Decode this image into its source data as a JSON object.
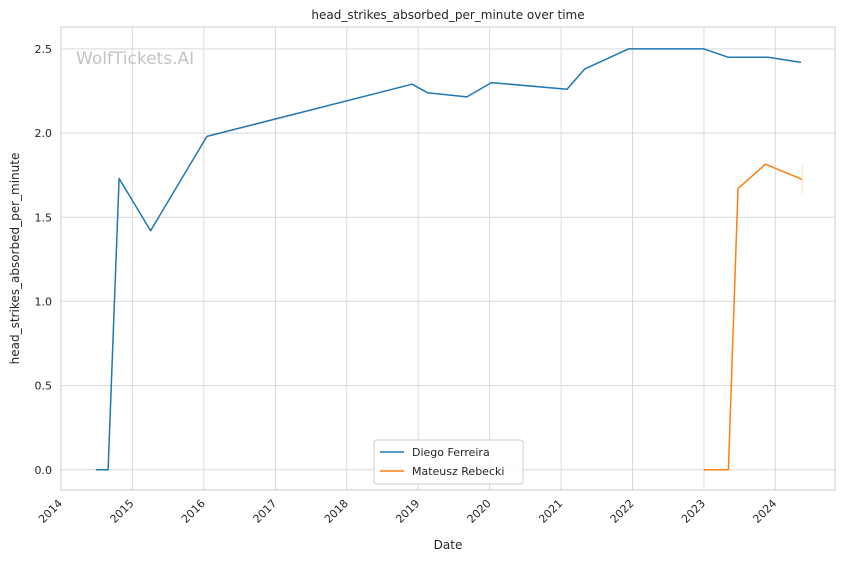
{
  "watermark": "WolfTickets.AI",
  "chart_data": {
    "type": "line",
    "title": "head_strikes_absorbed_per_minute over time",
    "xlabel": "Date",
    "ylabel": "head_strikes_absorbed_per_minute",
    "x_type": "date",
    "xlim": [
      "2014-01-01",
      "2024-11-01"
    ],
    "ylim": [
      -0.12,
      2.63
    ],
    "xticks": [
      "2014",
      "2015",
      "2016",
      "2017",
      "2018",
      "2019",
      "2020",
      "2021",
      "2022",
      "2023",
      "2024"
    ],
    "yticks": [
      "0.0",
      "0.5",
      "1.0",
      "1.5",
      "2.0",
      "2.5"
    ],
    "grid": true,
    "legend_position": "bottom-center",
    "series": [
      {
        "name": "Diego Ferreira",
        "color": "#1f77b4",
        "points": [
          [
            "2014-06-28",
            0.0
          ],
          [
            "2014-08-30",
            0.0
          ],
          [
            "2014-10-25",
            1.73
          ],
          [
            "2015-04-04",
            1.42
          ],
          [
            "2016-01-17",
            1.98
          ],
          [
            "2018-12-01",
            2.29
          ],
          [
            "2019-02-17",
            2.24
          ],
          [
            "2019-09-07",
            2.215
          ],
          [
            "2020-01-11",
            2.3
          ],
          [
            "2021-01-31",
            2.26
          ],
          [
            "2021-05-01",
            2.38
          ],
          [
            "2021-12-11",
            2.5
          ],
          [
            "2023-01-01",
            2.5
          ],
          [
            "2023-05-06",
            2.45
          ],
          [
            "2023-11-25",
            2.45
          ],
          [
            "2024-05-11",
            2.42
          ]
        ]
      },
      {
        "name": "Mateusz Rebecki",
        "color": "#ff7f0e",
        "points": [
          [
            "2023-01-01",
            0.0
          ],
          [
            "2023-05-06",
            0.0
          ],
          [
            "2023-06-24",
            1.67
          ],
          [
            "2023-11-11",
            1.815
          ],
          [
            "2024-05-18",
            1.725
          ]
        ]
      }
    ]
  }
}
